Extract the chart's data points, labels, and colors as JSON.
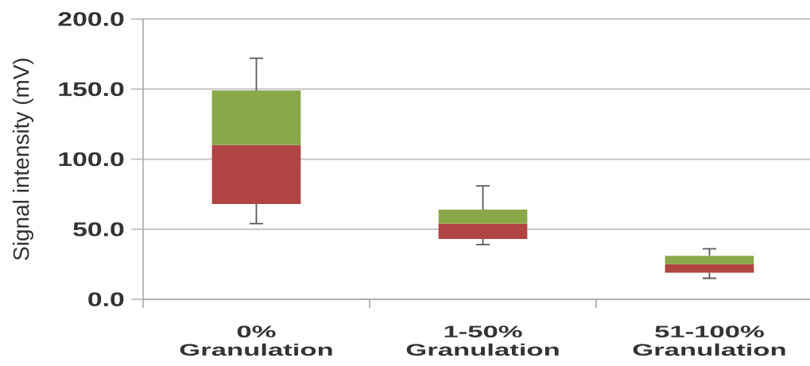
{
  "chart_data": {
    "type": "box",
    "ylabel": "Signal intensity (mV)",
    "categories": [
      "0% Granulation",
      "1-50% Granulation",
      "51-100% Granulation"
    ],
    "boxes": [
      {
        "low": 54,
        "q1": 68,
        "median": 110,
        "q3": 149,
        "high": 172
      },
      {
        "low": 39,
        "q1": 43,
        "median": 54,
        "q3": 64,
        "high": 81
      },
      {
        "low": 15,
        "q1": 19,
        "median": 25,
        "q3": 31,
        "high": 36
      }
    ],
    "colors": [
      "#b04442",
      "#b04442",
      "#b04442"
    ],
    "color": "#8aa84a",
    "ylim": [
      0,
      200
    ],
    "yticks": [
      {
        "value": 0,
        "label": "0.0"
      },
      {
        "value": 50,
        "label": "50.0"
      },
      {
        "value": 100,
        "label": "100.0"
      },
      {
        "value": 150,
        "label": "150.0"
      },
      {
        "value": 200,
        "label": "200.0"
      }
    ],
    "grid": "y"
  }
}
